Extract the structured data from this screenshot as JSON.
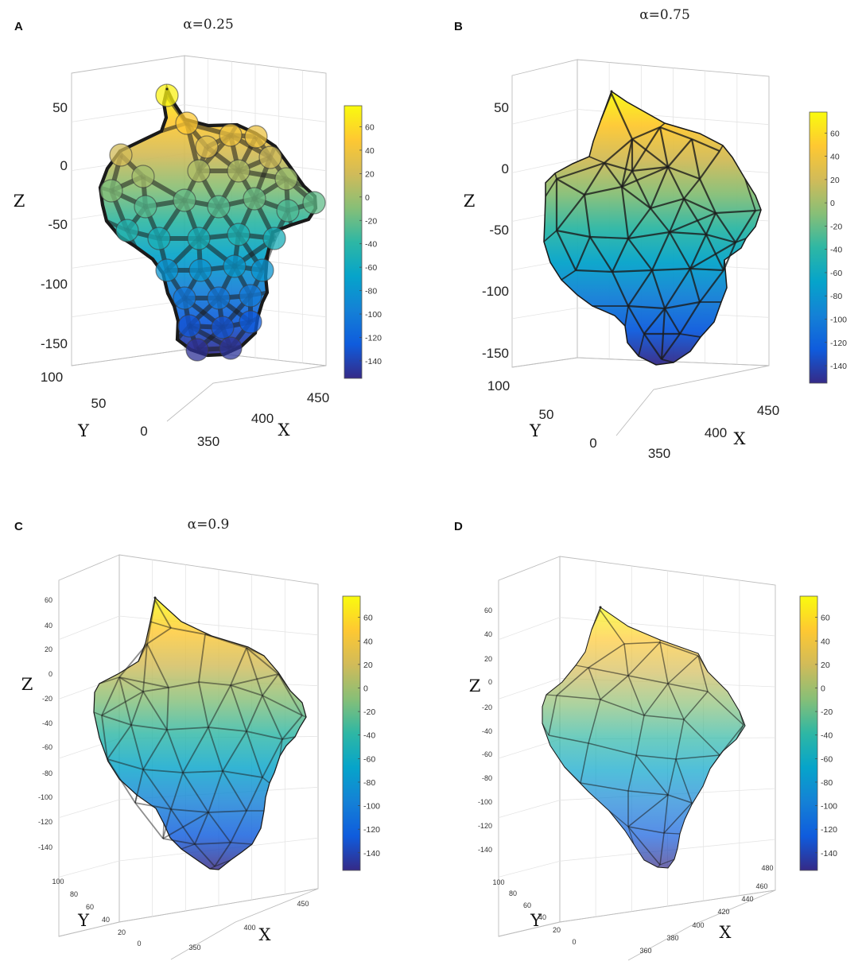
{
  "colors": {
    "parula": [
      "#352a87",
      "#0f5cdd",
      "#1481d6",
      "#06a4ca",
      "#2eb7a4",
      "#87bf77",
      "#d1bb59",
      "#fec832",
      "#f9fb0e"
    ]
  },
  "chart_data": [
    {
      "type": "surface3d",
      "panel": "A",
      "title": "α=0.25",
      "alpha": 0.25,
      "zlabel": "Z",
      "ylabel": "Y",
      "xlabel": "X",
      "zticks": [
        "50",
        "0",
        "-50",
        "-100",
        "-150"
      ],
      "yticks": [
        "100",
        "50",
        "0"
      ],
      "xticks": [
        "350",
        "400",
        "450"
      ],
      "colorbar": {
        "range": [
          -155,
          78
        ],
        "ticks": [
          "60",
          "40",
          "20",
          "0",
          "-20",
          "-40",
          "-60",
          "-80",
          "-100",
          "-120",
          "-140"
        ]
      }
    },
    {
      "type": "surface3d",
      "panel": "B",
      "title": "α=0.75",
      "alpha": 0.75,
      "zlabel": "Z",
      "ylabel": "Y",
      "xlabel": "X",
      "zticks": [
        "50",
        "0",
        "-50",
        "-100",
        "-150"
      ],
      "yticks": [
        "100",
        "50",
        "0"
      ],
      "xticks": [
        "350",
        "400",
        "450"
      ],
      "colorbar": {
        "range": [
          -155,
          78
        ],
        "ticks": [
          "60",
          "40",
          "20",
          "0",
          "-20",
          "-40",
          "-60",
          "-80",
          "-100",
          "-120",
          "-140"
        ]
      }
    },
    {
      "type": "surface3d",
      "panel": "C",
      "title": "α=0.9",
      "alpha": 0.9,
      "zlabel": "Z",
      "ylabel": "Y",
      "xlabel": "X",
      "zticks": [
        "60",
        "40",
        "20",
        "0",
        "-20",
        "-40",
        "-60",
        "-80",
        "-100",
        "-120",
        "-140"
      ],
      "yticks": [
        "100",
        "80",
        "60",
        "40",
        "20",
        "0"
      ],
      "xticks": [
        "350",
        "400",
        "450"
      ],
      "colorbar": {
        "range": [
          -155,
          78
        ],
        "ticks": [
          "60",
          "40",
          "20",
          "0",
          "-20",
          "-40",
          "-60",
          "-80",
          "-100",
          "-120",
          "-140"
        ]
      }
    },
    {
      "type": "surface3d",
      "panel": "D",
      "title": "",
      "zlabel": "Z",
      "ylabel": "Y",
      "xlabel": "X",
      "zticks": [
        "60",
        "40",
        "20",
        "0",
        "-20",
        "-40",
        "-60",
        "-80",
        "-100",
        "-120",
        "-140"
      ],
      "yticks": [
        "100",
        "80",
        "60",
        "40",
        "20",
        "0"
      ],
      "xticks": [
        "360",
        "380",
        "400",
        "420",
        "440",
        "460",
        "480"
      ],
      "colorbar": {
        "range": [
          -155,
          78
        ],
        "ticks": [
          "60",
          "40",
          "20",
          "0",
          "-20",
          "-40",
          "-60",
          "-80",
          "-100",
          "-120",
          "-140"
        ]
      }
    }
  ]
}
